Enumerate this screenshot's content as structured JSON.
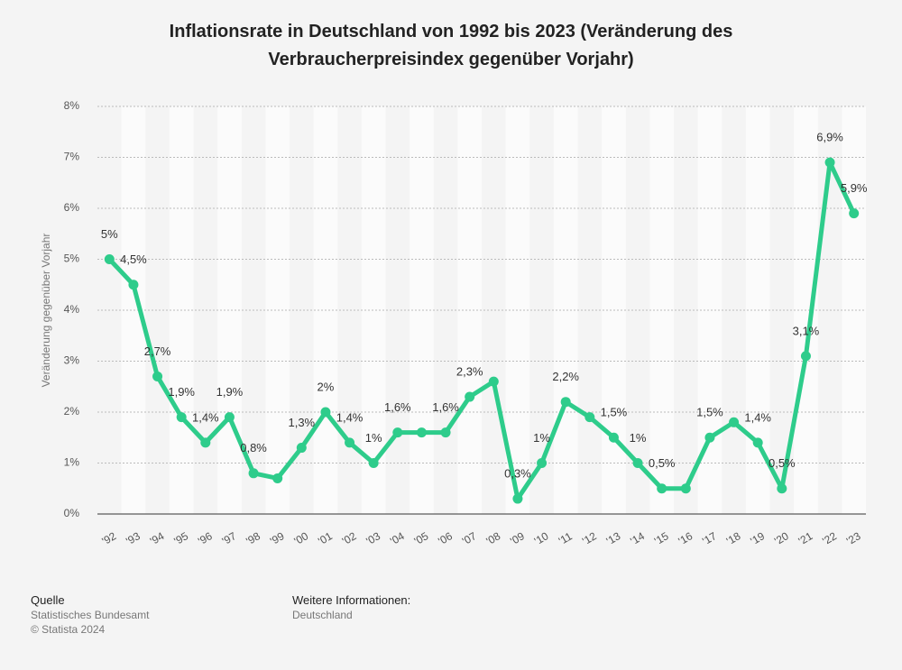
{
  "chart_data": {
    "type": "line",
    "title": "Inflationsrate in Deutschland von 1992 bis 2023 (Veränderung des Verbraucherpreisindex gegenüber Vorjahr)",
    "y_label": "Veränderung gegenüber Vorjahr",
    "categories": [
      "'92",
      "'93",
      "'94",
      "'95",
      "'96",
      "'97",
      "'98",
      "'99",
      "'00",
      "'01",
      "'02",
      "'03",
      "'04",
      "'05",
      "'06",
      "'07",
      "'08",
      "'09",
      "'10",
      "'11",
      "'12",
      "'13",
      "'14",
      "'15",
      "'16",
      "'17",
      "'18",
      "'19",
      "'20",
      "'21",
      "'22",
      "'23"
    ],
    "values": [
      5,
      4.5,
      2.7,
      1.9,
      1.4,
      1.9,
      0.8,
      0.7,
      1.3,
      2,
      1.4,
      1,
      1.6,
      1.6,
      1.6,
      2.3,
      2.6,
      0.3,
      1,
      2.2,
      1.9,
      1.5,
      1,
      0.5,
      0.5,
      1.5,
      1.8,
      1.4,
      0.5,
      3.1,
      6.9,
      5.9
    ],
    "value_labels": [
      "5%",
      "4,5%",
      "2,7%",
      "1,9%",
      "1,4%",
      "1,9%",
      "0,8%",
      null,
      "1,3%",
      "2%",
      "1,4%",
      "1%",
      "1,6%",
      null,
      "1,6%",
      "2,3%",
      null,
      "0,3%",
      "1%",
      "2,2%",
      null,
      "1,5%",
      "1%",
      "0,5%",
      null,
      "1,5%",
      null,
      "1,4%",
      "0,5%",
      "3,1%",
      "6,9%",
      "5,9%"
    ],
    "color": "#2ecc8b",
    "ylim": [
      0,
      8
    ],
    "yticks": [
      {
        "value": 0,
        "label": "0%"
      },
      {
        "value": 1,
        "label": "1%"
      },
      {
        "value": 2,
        "label": "2%"
      },
      {
        "value": 3,
        "label": "3%"
      },
      {
        "value": 4,
        "label": "4%"
      },
      {
        "value": 5,
        "label": "5%"
      },
      {
        "value": 6,
        "label": "6%"
      },
      {
        "value": 7,
        "label": "7%"
      },
      {
        "value": 8,
        "label": "8%"
      }
    ],
    "grid": true
  },
  "footer": {
    "source_heading": "Quelle",
    "source": "Statistisches Bundesamt",
    "copyright": "© Statista 2024",
    "info_heading": "Weitere Informationen:",
    "info": "Deutschland"
  }
}
